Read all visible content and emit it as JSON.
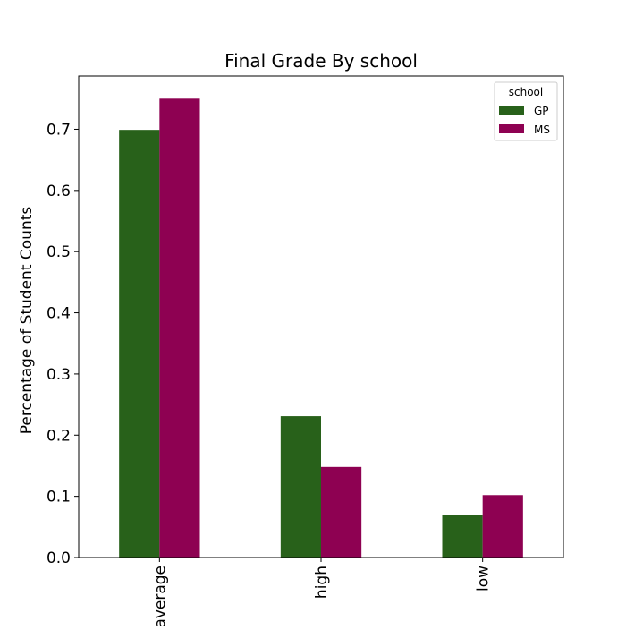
{
  "chart_data": {
    "type": "bar",
    "title": "Final Grade By school",
    "xlabel": "",
    "ylabel": "Percentage of Student Counts",
    "categories": [
      "average",
      "high",
      "low"
    ],
    "series": [
      {
        "name": "GP",
        "values": [
          0.699,
          0.231,
          0.07
        ]
      },
      {
        "name": "MS",
        "values": [
          0.75,
          0.148,
          0.102
        ]
      }
    ],
    "ylim": [
      0,
      0.787
    ],
    "yticks": [
      0.0,
      0.1,
      0.2,
      0.3,
      0.4,
      0.5,
      0.6,
      0.7
    ],
    "ytick_labels": [
      "0.0",
      "0.1",
      "0.2",
      "0.3",
      "0.4",
      "0.5",
      "0.6",
      "0.7"
    ],
    "grid": false,
    "legend": {
      "title": "school",
      "placement": "top-right"
    },
    "colors": {
      "GP": "#28611a",
      "MS": "#8e0152"
    }
  }
}
